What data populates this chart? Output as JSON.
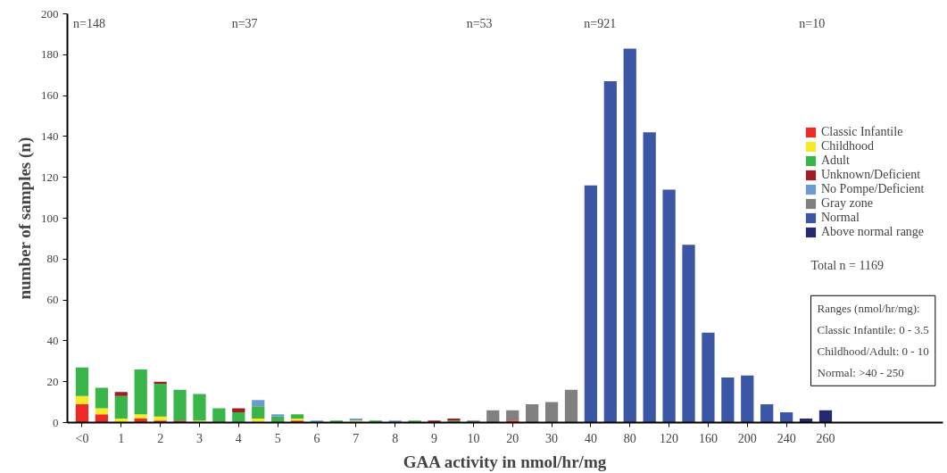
{
  "chart_data": {
    "type": "bar",
    "stacked": true,
    "xlabel": "GAA activity in nmol/hr/mg",
    "ylabel": "number of samples (n)",
    "categories": [
      "<0",
      null,
      "1",
      null,
      "2",
      null,
      "3",
      null,
      "4",
      null,
      "5",
      null,
      "6",
      null,
      "7",
      null,
      "8",
      null,
      "9",
      null,
      "10",
      null,
      "20",
      null,
      "30",
      null,
      "40",
      null,
      "80",
      null,
      "120",
      null,
      "160",
      null,
      "200",
      null,
      "240",
      null,
      "260"
    ],
    "series": [
      {
        "name": "Classic Infantile",
        "color": "#ee2a24",
        "values": [
          9,
          4,
          null,
          2,
          1,
          1,
          null,
          null,
          null,
          null,
          null,
          1,
          null,
          null,
          null,
          null,
          null,
          null,
          null,
          null,
          null,
          null,
          1,
          null,
          null,
          null,
          null,
          null,
          null,
          null,
          null,
          null,
          null,
          null,
          null,
          null,
          null,
          null,
          null
        ]
      },
      {
        "name": "Childhood",
        "color": "#f5e928",
        "values": [
          4,
          3,
          2,
          2,
          2,
          null,
          1,
          null,
          null,
          2,
          null,
          1,
          null,
          null,
          1,
          null,
          null,
          null,
          null,
          null,
          null,
          null,
          null,
          null,
          null,
          null,
          null,
          null,
          null,
          null,
          null,
          null,
          null,
          null,
          null,
          null,
          null,
          null,
          null
        ]
      },
      {
        "name": "Adult",
        "color": "#3ab54a",
        "values": [
          14,
          10,
          11,
          22,
          16,
          15,
          13,
          7,
          5,
          6,
          3,
          2,
          null,
          1,
          null,
          1,
          null,
          1,
          null,
          1,
          null,
          null,
          null,
          null,
          null,
          null,
          null,
          null,
          null,
          null,
          null,
          null,
          null,
          null,
          null,
          null,
          null,
          null,
          null
        ]
      },
      {
        "name": "Unknown/Deficient",
        "color": "#a01e22",
        "values": [
          null,
          null,
          2,
          null,
          1,
          null,
          null,
          null,
          2,
          null,
          null,
          null,
          null,
          null,
          null,
          null,
          null,
          null,
          1,
          1,
          null,
          null,
          null,
          null,
          null,
          null,
          null,
          null,
          null,
          null,
          null,
          null,
          null,
          null,
          null,
          null,
          null,
          null,
          null
        ]
      },
      {
        "name": "No Pompe/Deficient",
        "color": "#6c9bd2",
        "values": [
          null,
          null,
          null,
          null,
          null,
          null,
          null,
          null,
          null,
          3,
          1,
          null,
          1,
          null,
          1,
          null,
          1,
          null,
          null,
          null,
          null,
          null,
          null,
          null,
          null,
          null,
          null,
          null,
          null,
          null,
          null,
          null,
          null,
          null,
          null,
          null,
          null,
          null,
          null
        ]
      },
      {
        "name": "Gray zone",
        "color": "#808080",
        "values": [
          null,
          null,
          null,
          null,
          null,
          null,
          null,
          null,
          null,
          null,
          null,
          null,
          null,
          null,
          null,
          null,
          null,
          null,
          null,
          null,
          1,
          6,
          5,
          9,
          10,
          16,
          null,
          null,
          null,
          null,
          null,
          null,
          null,
          null,
          null,
          null,
          null,
          null,
          null
        ]
      },
      {
        "name": "Normal",
        "color": "#3a56a5",
        "values": [
          null,
          null,
          null,
          null,
          null,
          null,
          null,
          null,
          null,
          null,
          null,
          null,
          null,
          null,
          null,
          null,
          null,
          null,
          null,
          null,
          null,
          null,
          null,
          null,
          null,
          null,
          116,
          167,
          183,
          142,
          114,
          87,
          44,
          22,
          23,
          9,
          5,
          null,
          null
        ]
      },
      {
        "name": "Above normal range",
        "color": "#232a6e",
        "values": [
          null,
          null,
          null,
          null,
          null,
          null,
          null,
          null,
          null,
          null,
          null,
          null,
          null,
          null,
          null,
          null,
          null,
          null,
          null,
          null,
          null,
          null,
          null,
          null,
          null,
          null,
          null,
          null,
          null,
          null,
          null,
          null,
          null,
          null,
          null,
          null,
          null,
          2,
          6
        ]
      }
    ],
    "ylim": [
      0,
      200
    ],
    "yticks": [
      0,
      20,
      40,
      60,
      80,
      100,
      120,
      140,
      160,
      180,
      200
    ],
    "grid": false,
    "legend": "right",
    "annotations": [
      "n=148",
      "n=37",
      "n=53",
      "n=921",
      "n=10",
      "Total n = 1169",
      "Ranges (nmol/hr/mg):",
      "Classic Infantile: 0 - 3.5",
      "Childhood/Adult: 0 - 10",
      "Normal: >40 - 250"
    ]
  }
}
